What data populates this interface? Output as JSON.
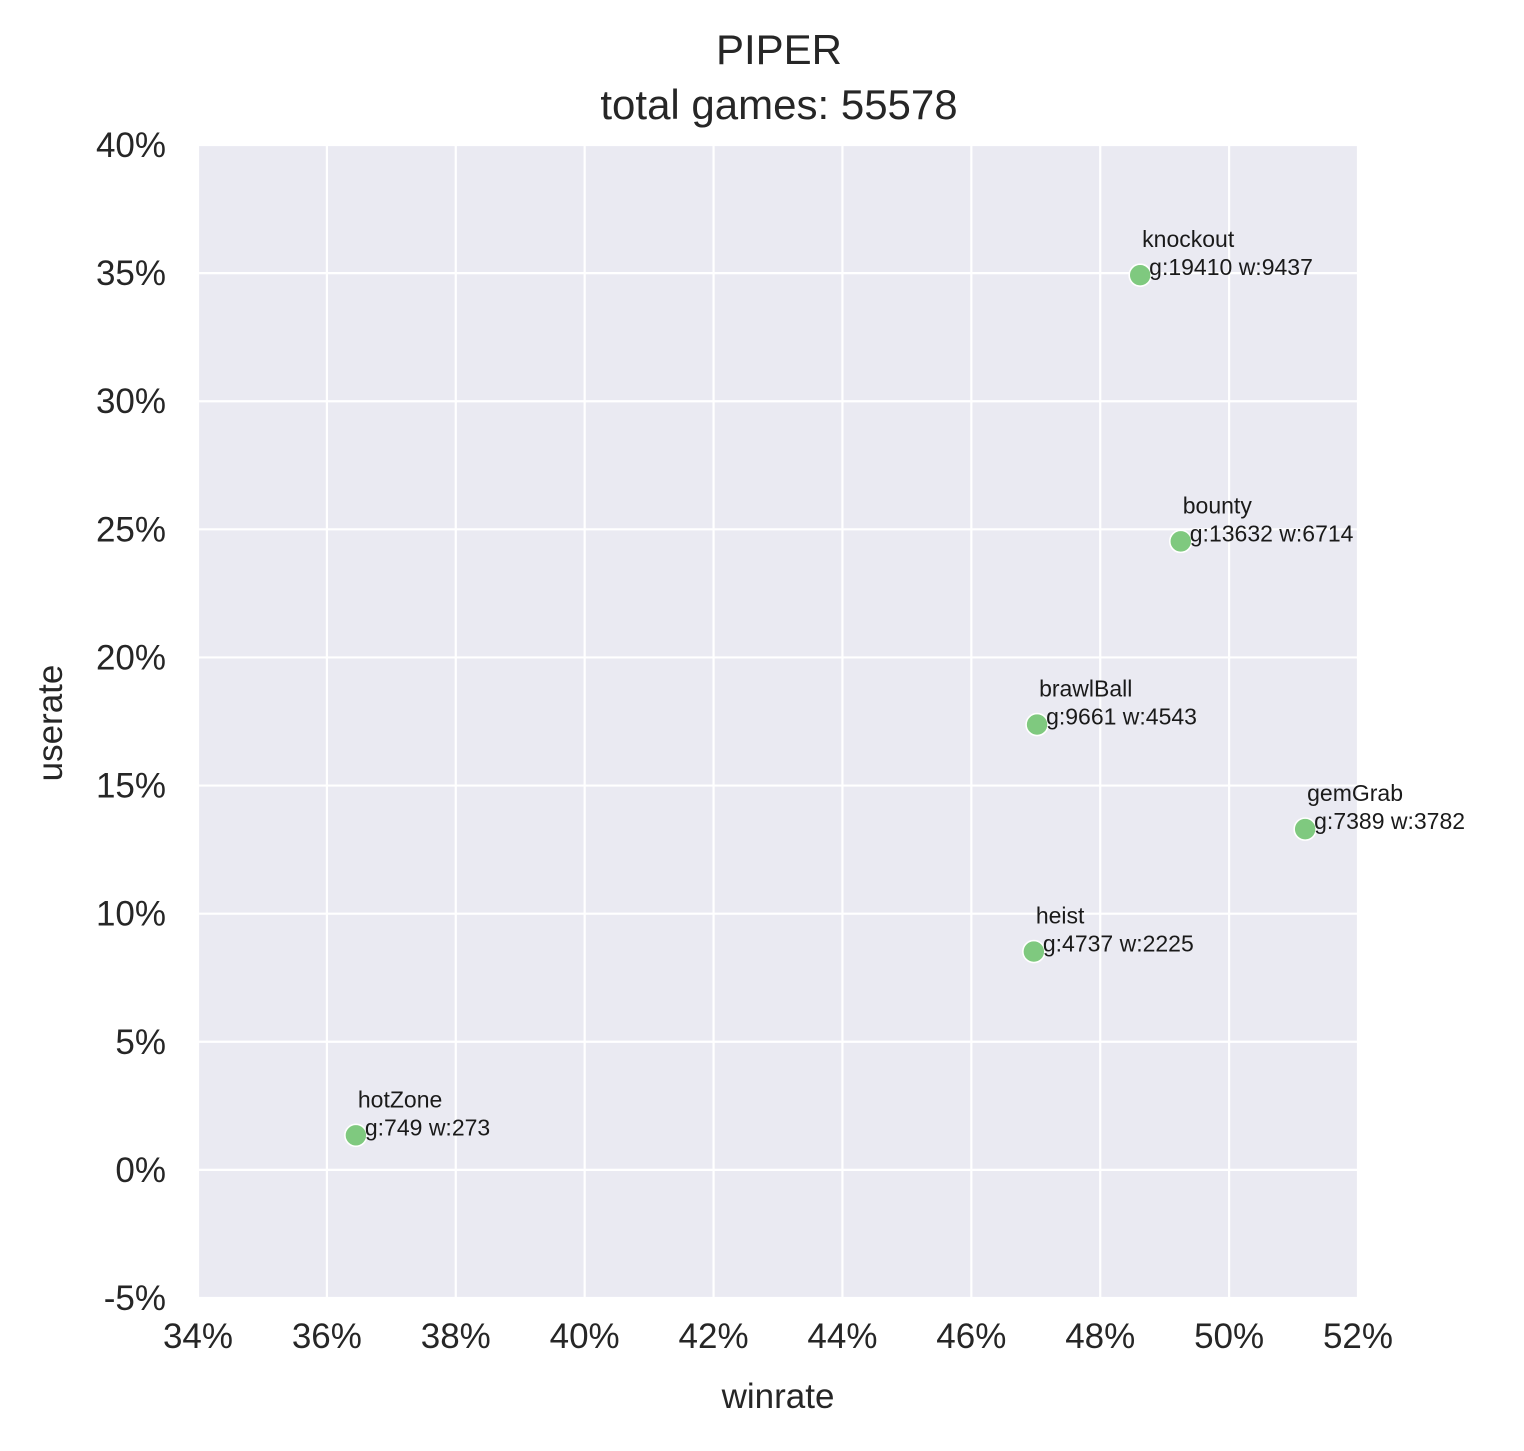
{
  "chart_data": {
    "type": "scatter",
    "title_lines": [
      "PIPER",
      "total games: 55578"
    ],
    "xlabel": "winrate",
    "ylabel": "userate",
    "xlim": [
      0.34,
      0.52
    ],
    "ylim": [
      -0.05,
      0.4
    ],
    "x_ticks": [
      0.34,
      0.36,
      0.38,
      0.4,
      0.42,
      0.44,
      0.46,
      0.48,
      0.5,
      0.52
    ],
    "x_tick_labels": [
      "34%",
      "36%",
      "38%",
      "40%",
      "42%",
      "44%",
      "46%",
      "48%",
      "50%",
      "52%"
    ],
    "y_ticks": [
      -0.05,
      0.0,
      0.05,
      0.1,
      0.15,
      0.2,
      0.25,
      0.3,
      0.35,
      0.4
    ],
    "y_tick_labels": [
      "-5%",
      "0%",
      "5%",
      "10%",
      "15%",
      "20%",
      "25%",
      "30%",
      "35%",
      "40%"
    ],
    "grid": true,
    "colors": {
      "background": "#eaeaf2",
      "grid": "#ffffff",
      "point": "#7fc97f",
      "point_edge": "#ffffff",
      "text": "#262626"
    },
    "points": [
      {
        "mode": "knockout",
        "label": "g:19410 w:9437",
        "x": 0.4862,
        "y": 0.3492
      },
      {
        "mode": "bounty",
        "label": "g:13632 w:6714",
        "x": 0.4925,
        "y": 0.2453
      },
      {
        "mode": "brawlBall",
        "label": "g:9661 w:4543",
        "x": 0.4702,
        "y": 0.1738
      },
      {
        "mode": "gemGrab",
        "label": "g:7389 w:3782",
        "x": 0.5118,
        "y": 0.133
      },
      {
        "mode": "heist",
        "label": "g:4737 w:2225",
        "x": 0.4697,
        "y": 0.0852
      },
      {
        "mode": "hotZone",
        "label": "g:749 w:273",
        "x": 0.3645,
        "y": 0.0135
      }
    ]
  }
}
